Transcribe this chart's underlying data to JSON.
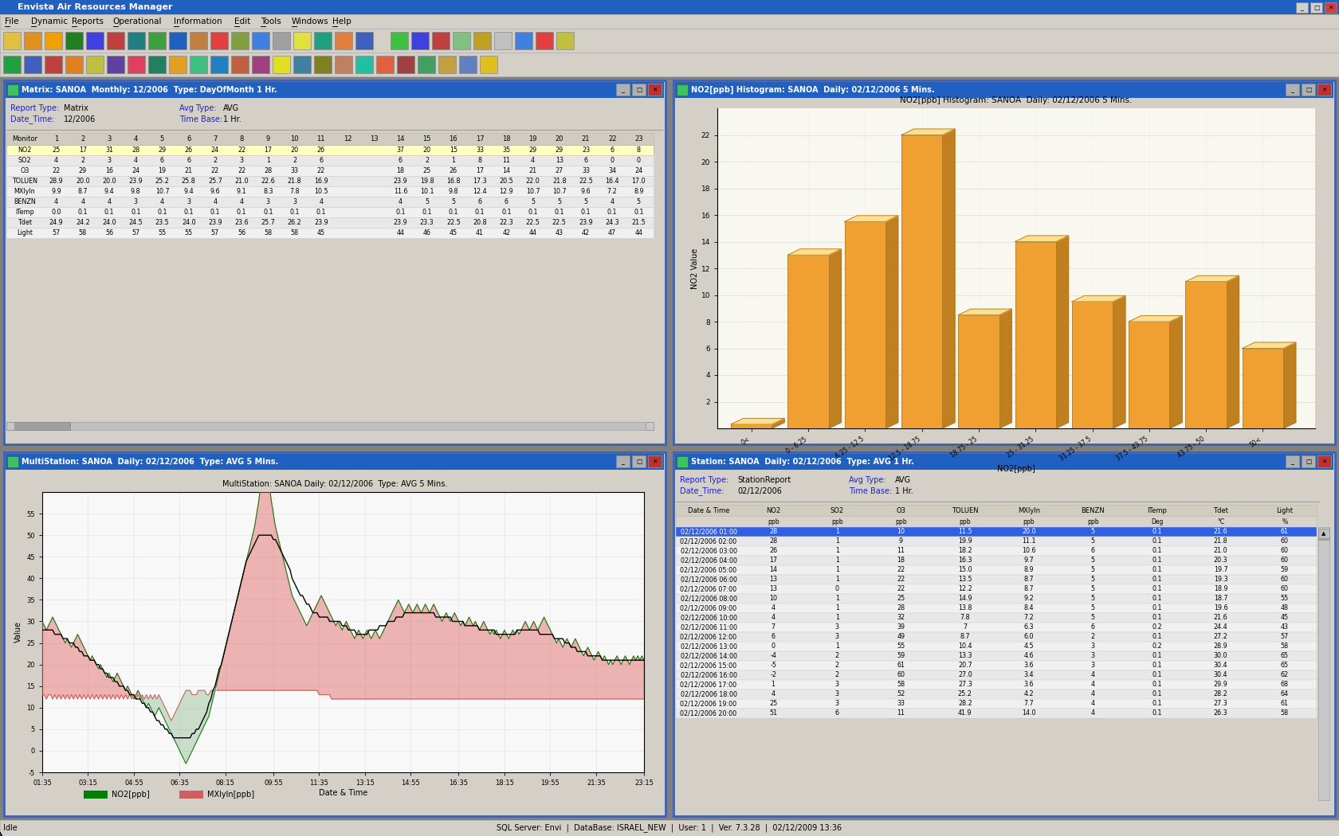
{
  "app_title": "Envista Air Resources Manager",
  "menu_items": [
    "File",
    "Dynamic",
    "Reports",
    "Operational",
    "Information",
    "Edit",
    "Tools",
    "Windows",
    "Help"
  ],
  "taskbar_text": "SQL Server: Envi  |  DataBase: ISRAEL_NEW  |  User: 1  |  Ver. 7.3.28  |  02/12/2009 13:36",
  "panel1": {
    "title": "Matrix: SANOA  Monthly: 12/2006  Type: DayOfMonth 1 Hr.",
    "report_type": "Matrix",
    "avg_type": "AVG",
    "date_time": "12/2006",
    "time_base": "1 Hr.",
    "columns": [
      "Monitor",
      "1",
      "2",
      "3",
      "4",
      "5",
      "6",
      "7",
      "8",
      "9",
      "10",
      "11",
      "12",
      "13",
      "14",
      "15",
      "16",
      "17",
      "18",
      "19",
      "20",
      "21",
      "22",
      "23"
    ],
    "rows": [
      [
        "NO2",
        "25",
        "17",
        "31",
        "28",
        "29",
        "26",
        "24",
        "22",
        "17",
        "20",
        "26",
        "",
        "",
        "37",
        "20",
        "15",
        "33",
        "35",
        "29",
        "29",
        "23",
        "6",
        "8"
      ],
      [
        "SO2",
        "4",
        "2",
        "3",
        "4",
        "6",
        "6",
        "2",
        "3",
        "1",
        "2",
        "6",
        "",
        "",
        "6",
        "2",
        "1",
        "8",
        "11",
        "4",
        "13",
        "6",
        "0",
        "0"
      ],
      [
        "O3",
        "22",
        "29",
        "16",
        "24",
        "19",
        "21",
        "22",
        "22",
        "28",
        "33",
        "22",
        "",
        "",
        "18",
        "25",
        "26",
        "17",
        "14",
        "21",
        "27",
        "33",
        "34",
        "24"
      ],
      [
        "TOLUEN",
        "28.9",
        "20.0",
        "20.0",
        "23.9",
        "25.2",
        "25.8",
        "25.7",
        "21.0",
        "22.6",
        "21.8",
        "16.9",
        "",
        "",
        "23.9",
        "19.8",
        "16.8",
        "17.3",
        "20.5",
        "22.0",
        "21.8",
        "22.5",
        "16.4",
        "17.0"
      ],
      [
        "MXlyln",
        "9.9",
        "8.7",
        "9.4",
        "9.8",
        "10.7",
        "9.4",
        "9.6",
        "9.1",
        "8.3",
        "7.8",
        "10.5",
        "",
        "",
        "11.6",
        "10.1",
        "9.8",
        "12.4",
        "12.9",
        "10.7",
        "10.7",
        "9.6",
        "7.2",
        "8.9"
      ],
      [
        "BENZN",
        "4",
        "4",
        "4",
        "3",
        "4",
        "3",
        "4",
        "4",
        "3",
        "3",
        "4",
        "",
        "",
        "4",
        "5",
        "5",
        "6",
        "6",
        "5",
        "5",
        "5",
        "4",
        "5"
      ],
      [
        "ITemp",
        "0.0",
        "0.1",
        "0.1",
        "0.1",
        "0.1",
        "0.1",
        "0.1",
        "0.1",
        "0.1",
        "0.1",
        "0.1",
        "",
        "",
        "0.1",
        "0.1",
        "0.1",
        "0.1",
        "0.1",
        "0.1",
        "0.1",
        "0.1",
        "0.1",
        "0.1"
      ],
      [
        "Tdet",
        "24.9",
        "24.2",
        "24.0",
        "24.5",
        "23.5",
        "24.0",
        "23.9",
        "23.6",
        "25.7",
        "26.2",
        "23.9",
        "",
        "",
        "23.9",
        "23.3",
        "22.5",
        "20.8",
        "22.3",
        "22.5",
        "22.5",
        "23.9",
        "24.3",
        "21.5"
      ],
      [
        "Light",
        "57",
        "58",
        "56",
        "57",
        "55",
        "55",
        "57",
        "56",
        "58",
        "58",
        "45",
        "",
        "",
        "44",
        "46",
        "45",
        "41",
        "42",
        "44",
        "43",
        "42",
        "47",
        "44"
      ]
    ]
  },
  "panel2": {
    "title": "NO2[ppb] Histogram: SANOA  Daily: 02/12/2006 5 Mins.",
    "chart_title": "NO2[ppb] Histogram: SANOA  Daily: 02/12/2006 5 Mins.",
    "ylabel": "NO2 Value",
    "xlabel": "NO2[ppb]",
    "yticks": [
      2,
      4,
      6,
      8,
      10,
      12,
      14,
      16,
      18,
      20,
      22
    ],
    "categories": [
      "0<",
      "0 - 6.25",
      "6.25 - 12.5",
      "12.5 - 18.75",
      "18.75 - 25",
      "25 - 31.25",
      "31.25 - 37.5",
      "37.5 - 43.75",
      "43.75 - 50",
      "50<"
    ],
    "values": [
      0.3,
      13,
      15.5,
      22,
      8.5,
      14,
      9.5,
      8,
      11,
      6
    ],
    "bar_color": "#f0a030",
    "bar_color_light": "#ffe080",
    "bar_color_dark": "#c07820"
  },
  "panel3": {
    "title": "MultiStation: SANOA  Daily: 02/12/2006  Type: AVG 5 Mins.",
    "chart_title": "MultiStation: SANOA Daily: 02/12/2006  Type: AVG 5 Mins.",
    "ylabel": "Value",
    "xlabel": "Date & Time",
    "yticks": [
      -5,
      0,
      5,
      10,
      15,
      20,
      25,
      30,
      35,
      40,
      45,
      50,
      55
    ],
    "xticks": [
      "01:35",
      "03:15",
      "04:55",
      "06:35",
      "08:15",
      "09:55",
      "11:35",
      "13:15",
      "14:55",
      "16:35",
      "18:15",
      "19:55",
      "21:35",
      "23:15"
    ],
    "legend": [
      "NO2[ppb]",
      "MXlyln[ppb]"
    ],
    "no2_values": [
      30,
      29,
      28,
      29,
      30,
      31,
      30,
      29,
      28,
      27,
      26,
      25,
      26,
      25,
      24,
      25,
      26,
      27,
      26,
      25,
      24,
      23,
      22,
      21,
      22,
      21,
      20,
      19,
      20,
      19,
      18,
      17,
      18,
      17,
      16,
      17,
      18,
      17,
      16,
      15,
      14,
      15,
      14,
      13,
      12,
      13,
      14,
      13,
      12,
      11,
      10,
      11,
      10,
      9,
      8,
      9,
      10,
      9,
      8,
      7,
      6,
      5,
      4,
      3,
      2,
      1,
      0,
      -1,
      -2,
      -3,
      -2,
      -1,
      0,
      1,
      2,
      3,
      4,
      5,
      6,
      7,
      8,
      10,
      12,
      14,
      16,
      18,
      20,
      22,
      24,
      26,
      28,
      30,
      32,
      34,
      36,
      38,
      40,
      42,
      44,
      46,
      48,
      50,
      52,
      55,
      58,
      62,
      66,
      68,
      65,
      62,
      58,
      55,
      52,
      50,
      48,
      46,
      44,
      42,
      40,
      38,
      36,
      35,
      34,
      33,
      32,
      31,
      30,
      29,
      30,
      31,
      32,
      33,
      34,
      35,
      36,
      35,
      34,
      33,
      32,
      31,
      30,
      29,
      30,
      29,
      28,
      29,
      30,
      29,
      28,
      27,
      26,
      27,
      28,
      27,
      26,
      27,
      28,
      27,
      26,
      27,
      28,
      27,
      26,
      27,
      28,
      29,
      30,
      31,
      32,
      33,
      34,
      35,
      34,
      33,
      32,
      33,
      34,
      33,
      32,
      33,
      34,
      33,
      32,
      33,
      34,
      33,
      32,
      33,
      34,
      33,
      32,
      31,
      30,
      31,
      32,
      31,
      30,
      31,
      32,
      31,
      30,
      29,
      30,
      29,
      30,
      31,
      30,
      29,
      30,
      29,
      28,
      29,
      30,
      29,
      28,
      27,
      28,
      27,
      28,
      27,
      26,
      27,
      28,
      27,
      26,
      27,
      28,
      27,
      28,
      27,
      28,
      29,
      30,
      29,
      28,
      29,
      30,
      29,
      28,
      29,
      30,
      31,
      30,
      29,
      28,
      27,
      26,
      25,
      26,
      25,
      24,
      25,
      26,
      25,
      24,
      25,
      26,
      25,
      24,
      23,
      22,
      23,
      24,
      23,
      22,
      21,
      22,
      23,
      22,
      21,
      22,
      21,
      20,
      21,
      20,
      21,
      22,
      21,
      20,
      21,
      22,
      21,
      20,
      21,
      22,
      21,
      22,
      21,
      22,
      21
    ],
    "mxlyn_values": [
      13,
      13,
      12,
      13,
      13,
      12,
      13,
      12,
      13,
      12,
      13,
      12,
      13,
      12,
      13,
      12,
      13,
      12,
      13,
      12,
      13,
      12,
      13,
      12,
      13,
      12,
      13,
      12,
      13,
      12,
      13,
      12,
      13,
      12,
      13,
      12,
      13,
      12,
      13,
      12,
      13,
      12,
      13,
      12,
      13,
      12,
      13,
      12,
      13,
      12,
      13,
      12,
      13,
      12,
      13,
      12,
      13,
      12,
      11,
      10,
      9,
      8,
      7,
      8,
      9,
      10,
      11,
      12,
      13,
      14,
      14,
      14,
      13,
      13,
      13,
      14,
      14,
      14,
      14,
      13,
      13,
      14,
      14,
      14,
      14,
      14,
      14,
      14,
      14,
      14,
      14,
      14,
      14,
      14,
      14,
      14,
      14,
      14,
      14,
      14,
      14,
      14,
      14,
      14,
      14,
      14,
      14,
      14,
      14,
      14,
      14,
      14,
      14,
      14,
      14,
      14,
      14,
      14,
      14,
      14,
      14,
      14,
      14,
      14,
      14,
      14,
      14,
      14,
      14,
      14,
      14,
      14,
      14,
      13,
      13,
      13,
      13,
      13,
      13,
      12,
      12,
      12,
      12,
      12,
      12,
      12,
      12,
      12,
      12,
      12,
      12,
      12,
      12,
      12,
      12,
      12,
      12,
      12,
      12,
      12,
      12,
      12,
      12,
      12,
      12,
      12,
      12,
      12,
      12,
      12,
      12,
      12,
      12,
      12,
      12,
      12,
      12,
      12,
      12,
      12,
      12,
      12,
      12,
      12,
      12,
      12,
      12,
      12,
      12,
      12,
      12,
      12,
      12,
      12,
      12,
      12,
      12,
      12,
      12,
      12,
      12,
      12,
      12,
      12,
      12,
      12,
      12,
      12,
      12,
      12,
      12,
      12,
      12,
      12,
      12,
      12,
      12,
      12,
      12,
      12,
      12,
      12,
      12,
      12,
      12,
      12,
      12,
      12,
      12,
      12,
      12,
      12,
      12,
      12,
      12,
      12,
      12,
      12,
      12,
      12,
      12,
      12,
      12,
      12,
      12,
      12,
      12,
      12,
      12,
      12,
      12,
      12,
      12,
      12,
      12,
      12,
      12,
      12,
      12,
      12,
      12,
      12,
      12,
      12,
      12,
      12,
      12,
      12,
      12,
      12,
      12,
      12,
      12,
      12,
      12,
      12,
      12,
      12,
      12,
      12,
      12,
      12,
      12,
      12,
      12,
      12,
      12,
      12,
      12,
      12
    ]
  },
  "panel4": {
    "title": "Station: SANOA  Daily: 02/12/2006  Type: AVG 1 Hr.",
    "report_type": "StationReport",
    "avg_type": "AVG",
    "date_time": "02/12/2006",
    "time_base": "1 Hr.",
    "col_names": [
      "Date & Time",
      "NO2",
      "SO2",
      "O3",
      "TOLUEN",
      "MXlyln",
      "BENZN",
      "ITemp",
      "Tdet",
      "Light"
    ],
    "col_units": [
      "",
      "ppb",
      "ppb",
      "ppb",
      "ppb",
      "ppb",
      "ppb",
      "Deg",
      "°C",
      "%"
    ],
    "rows": [
      [
        "02/12/2006 01:00",
        "28",
        "1",
        "10",
        "11.5",
        "20.0",
        "5",
        "0.1",
        "21.6",
        "61"
      ],
      [
        "02/12/2006 02:00",
        "28",
        "1",
        "9",
        "19.9",
        "11.1",
        "5",
        "0.1",
        "21.8",
        "60"
      ],
      [
        "02/12/2006 03:00",
        "26",
        "1",
        "11",
        "18.2",
        "10.6",
        "6",
        "0.1",
        "21.0",
        "60"
      ],
      [
        "02/12/2006 04:00",
        "17",
        "1",
        "18",
        "16.3",
        "9.7",
        "5",
        "0.1",
        "20.3",
        "60"
      ],
      [
        "02/12/2006 05:00",
        "14",
        "1",
        "22",
        "15.0",
        "8.9",
        "5",
        "0.1",
        "19.7",
        "59"
      ],
      [
        "02/12/2006 06:00",
        "13",
        "1",
        "22",
        "13.5",
        "8.7",
        "5",
        "0.1",
        "19.3",
        "60"
      ],
      [
        "02/12/2006 07:00",
        "13",
        "0",
        "22",
        "12.2",
        "8.7",
        "5",
        "0.1",
        "18.9",
        "60"
      ],
      [
        "02/12/2006 08:00",
        "10",
        "1",
        "25",
        "14.9",
        "9.2",
        "5",
        "0.1",
        "18.7",
        "55"
      ],
      [
        "02/12/2006 09:00",
        "4",
        "1",
        "28",
        "13.8",
        "8.4",
        "5",
        "0.1",
        "19.6",
        "48"
      ],
      [
        "02/12/2006 10:00",
        "4",
        "1",
        "32",
        "7.8",
        "7.2",
        "5",
        "0.1",
        "21.6",
        "45"
      ],
      [
        "02/12/2006 11:00",
        "7",
        "3",
        "39",
        "7",
        "6.3",
        "6",
        "0.2",
        "24.4",
        "43"
      ],
      [
        "02/12/2006 12:00",
        "6",
        "3",
        "49",
        "8.7",
        "6.0",
        "2",
        "0.1",
        "27.2",
        "57"
      ],
      [
        "02/12/2006 13:00",
        "0",
        "1",
        "55",
        "10.4",
        "4.5",
        "3",
        "0.2",
        "28.9",
        "58"
      ],
      [
        "02/12/2006 14:00",
        "-4",
        "2",
        "59",
        "13.3",
        "4.6",
        "3",
        "0.1",
        "30.0",
        "65"
      ],
      [
        "02/12/2006 15:00",
        "-5",
        "2",
        "61",
        "20.7",
        "3.6",
        "3",
        "0.1",
        "30.4",
        "65"
      ],
      [
        "02/12/2006 16:00",
        "-2",
        "2",
        "60",
        "27.0",
        "3.4",
        "4",
        "0.1",
        "30.4",
        "62"
      ],
      [
        "02/12/2006 17:00",
        "1",
        "3",
        "58",
        "27.3",
        "3.6",
        "4",
        "0.1",
        "29.9",
        "68"
      ],
      [
        "02/12/2006 18:00",
        "4",
        "3",
        "52",
        "25.2",
        "4.2",
        "4",
        "0.1",
        "28.2",
        "64"
      ],
      [
        "02/12/2006 19:00",
        "25",
        "3",
        "33",
        "28.2",
        "7.7",
        "4",
        "0.1",
        "27.3",
        "61"
      ],
      [
        "02/12/2006 20:00",
        "51",
        "6",
        "11",
        "41.9",
        "14.0",
        "4",
        "0.1",
        "26.3",
        "58"
      ]
    ],
    "selected_row": 0
  }
}
